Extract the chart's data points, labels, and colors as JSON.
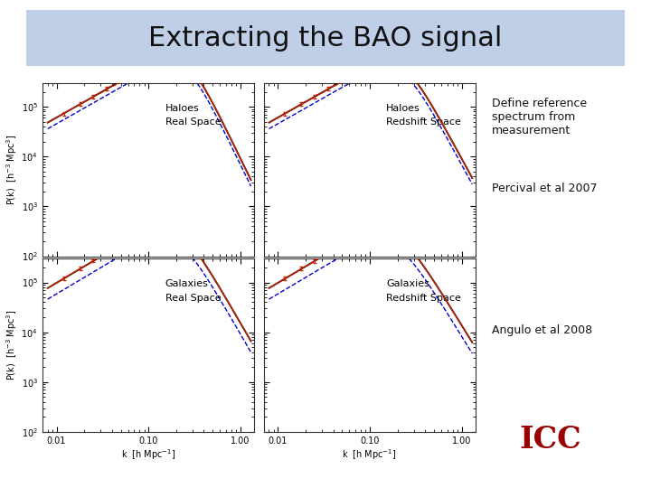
{
  "title": "Extracting the BAO signal",
  "title_bg_color": "#bfcfe8",
  "main_bg_color": "#ffffff",
  "plot_bg_color": "#ffffff",
  "labels_top_left": [
    "Haloes",
    "Real Space"
  ],
  "labels_top_right": [
    "Haloes",
    "Redshift Space"
  ],
  "labels_bot_left": [
    "Galaxies",
    "Real Space"
  ],
  "labels_bot_right": [
    "Galaxies",
    "Redshift Space"
  ],
  "ylabel_top": "P(k)  [h$^{-3}$ Mpc$^3$]",
  "ylabel_bot": "P(k)  [h$^{-3}$ Mpc$^3$]",
  "xlabel_left": "k  [h Mpc$^{-1}$]",
  "xlabel_right": "k  [h Mpc$^{-1}$]",
  "text_define": "Define reference\nspectrum from\nmeasurement",
  "text_percival": "Percival et al 2007",
  "text_angulo": "Angulo et al 2008",
  "ylim": [
    100,
    300000
  ],
  "xlim_left": [
    0.007,
    1.4
  ],
  "xlim_right": [
    0.007,
    1.4
  ],
  "line_black": "#000000",
  "line_red": "#cc2200",
  "line_blue": "#0000cc",
  "line_dotred": "#cc0000",
  "icc_color": "#990000",
  "title_fontsize": 22,
  "label_fontsize": 8,
  "annot_fontsize": 9
}
